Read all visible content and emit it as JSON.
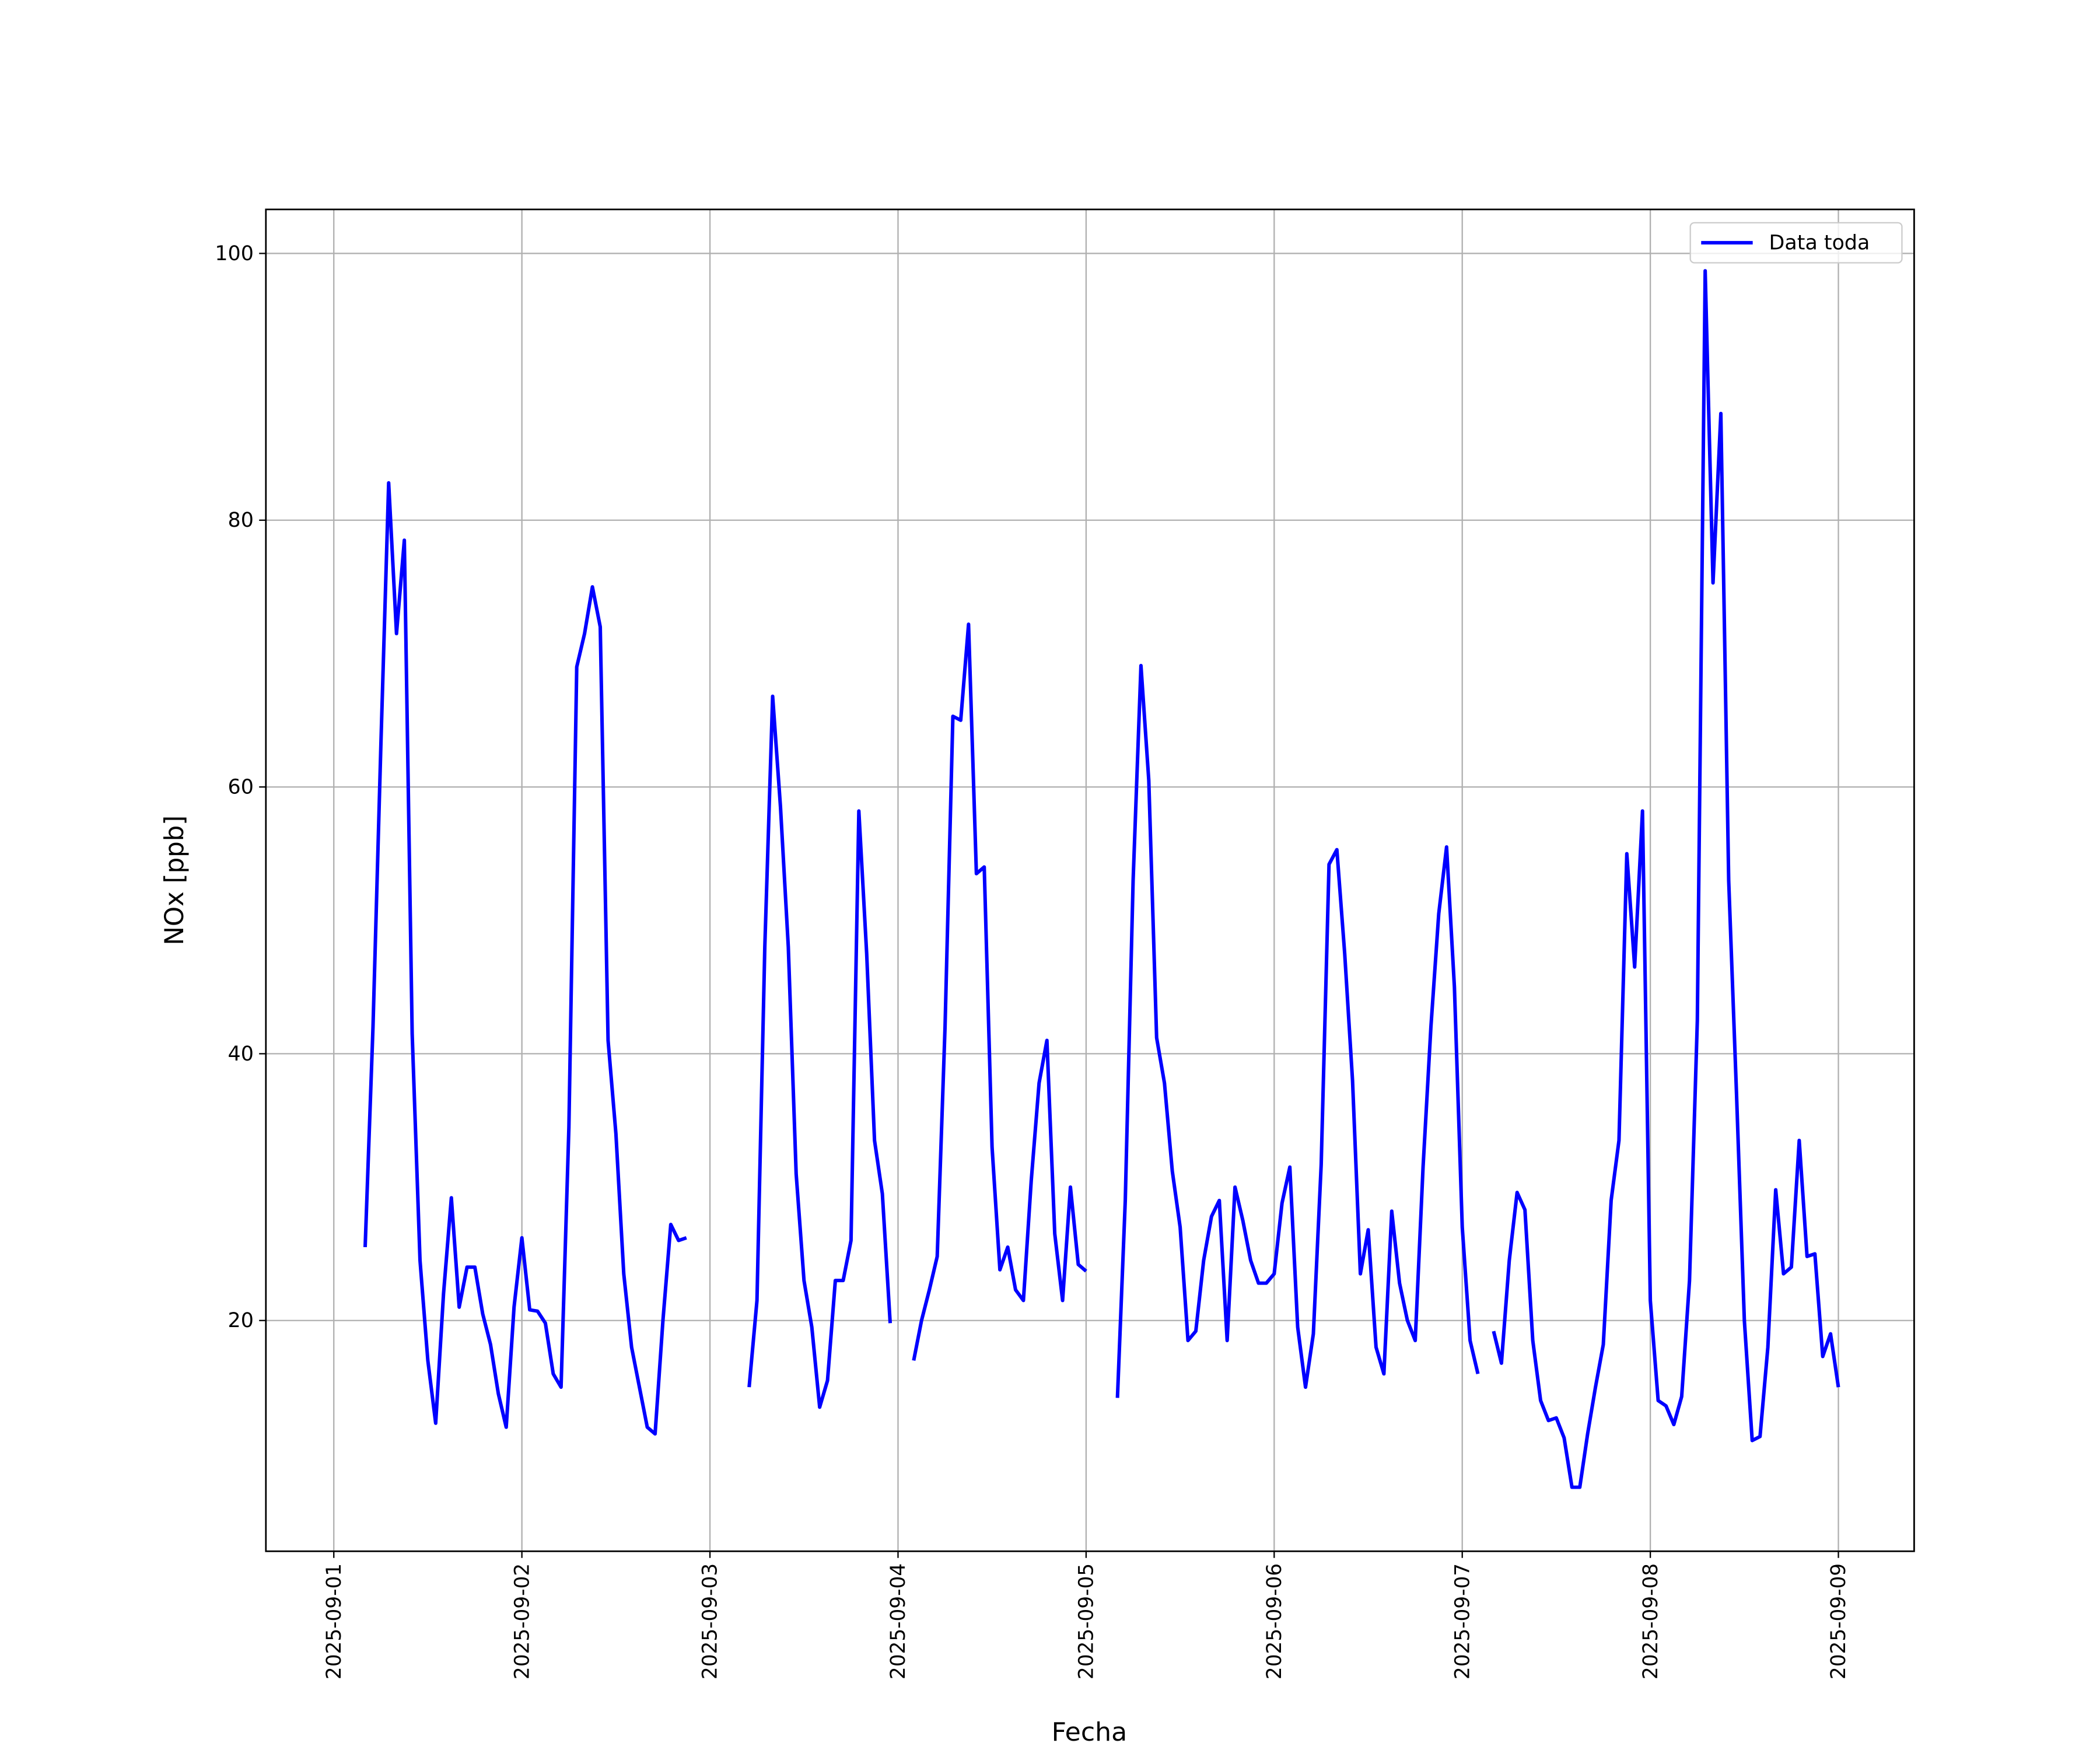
{
  "chart_data": {
    "type": "line",
    "xlabel": "Fecha",
    "ylabel": "NOx [ppb]",
    "xlim": [
      "2025-08-31 15:20",
      "2025-09-09 09:40"
    ],
    "xticks": [
      "2025-09-01",
      "2025-09-02",
      "2025-09-03",
      "2025-09-04",
      "2025-09-05",
      "2025-09-06",
      "2025-09-07",
      "2025-09-08",
      "2025-09-09"
    ],
    "ylim": [
      2.7,
      103.3
    ],
    "yticks": [
      20,
      40,
      60,
      80,
      100
    ],
    "grid": true,
    "legend": "upper right",
    "x": [
      "2025-09-01 04:00",
      "2025-09-01 05:00",
      "2025-09-01 06:00",
      "2025-09-01 07:00",
      "2025-09-01 08:00",
      "2025-09-01 09:00",
      "2025-09-01 10:00",
      "2025-09-01 11:00",
      "2025-09-01 12:00",
      "2025-09-01 13:00",
      "2025-09-01 14:00",
      "2025-09-01 15:00",
      "2025-09-01 16:00",
      "2025-09-01 17:00",
      "2025-09-01 18:00",
      "2025-09-01 19:00",
      "2025-09-01 20:00",
      "2025-09-01 21:00",
      "2025-09-01 22:00",
      "2025-09-01 23:00",
      "2025-09-02 00:00",
      "2025-09-02 01:00",
      "2025-09-02 02:00",
      "2025-09-02 03:00",
      "2025-09-02 04:00",
      "2025-09-02 05:00",
      "2025-09-02 06:00",
      "2025-09-02 07:00",
      "2025-09-02 08:00",
      "2025-09-02 09:00",
      "2025-09-02 10:00",
      "2025-09-02 11:00",
      "2025-09-02 12:00",
      "2025-09-02 13:00",
      "2025-09-02 14:00",
      "2025-09-02 15:00",
      "2025-09-02 16:00",
      "2025-09-02 17:00",
      "2025-09-02 18:00",
      "2025-09-02 19:00",
      "2025-09-02 20:00",
      "2025-09-02 21:00",
      "2025-09-02 22:00",
      "2025-09-03 05:00",
      "2025-09-03 06:00",
      "2025-09-03 07:00",
      "2025-09-03 08:00",
      "2025-09-03 09:00",
      "2025-09-03 10:00",
      "2025-09-03 11:00",
      "2025-09-03 12:00",
      "2025-09-03 13:00",
      "2025-09-03 14:00",
      "2025-09-03 15:00",
      "2025-09-03 16:00",
      "2025-09-03 17:00",
      "2025-09-03 18:00",
      "2025-09-03 19:00",
      "2025-09-03 20:00",
      "2025-09-03 21:00",
      "2025-09-03 22:00",
      "2025-09-03 23:00",
      "2025-09-04 00:00",
      "2025-09-04 02:00",
      "2025-09-04 03:00",
      "2025-09-04 04:00",
      "2025-09-04 05:00",
      "2025-09-04 06:00",
      "2025-09-04 07:00",
      "2025-09-04 08:00",
      "2025-09-04 09:00",
      "2025-09-04 10:00",
      "2025-09-04 11:00",
      "2025-09-04 12:00",
      "2025-09-04 13:00",
      "2025-09-04 14:00",
      "2025-09-04 15:00",
      "2025-09-04 16:00",
      "2025-09-04 17:00",
      "2025-09-04 18:00",
      "2025-09-04 19:00",
      "2025-09-04 20:00",
      "2025-09-04 21:00",
      "2025-09-04 22:00",
      "2025-09-04 23:00",
      "2025-09-05 00:00",
      "2025-09-05 01:00",
      "2025-09-05 04:00",
      "2025-09-05 05:00",
      "2025-09-05 06:00",
      "2025-09-05 07:00",
      "2025-09-05 08:00",
      "2025-09-05 09:00",
      "2025-09-05 10:00",
      "2025-09-05 11:00",
      "2025-09-05 12:00",
      "2025-09-05 13:00",
      "2025-09-05 14:00",
      "2025-09-05 15:00",
      "2025-09-05 16:00",
      "2025-09-05 17:00",
      "2025-09-05 18:00",
      "2025-09-05 19:00",
      "2025-09-05 20:00",
      "2025-09-05 21:00",
      "2025-09-05 22:00",
      "2025-09-05 23:00",
      "2025-09-06 00:00",
      "2025-09-06 01:00",
      "2025-09-06 02:00",
      "2025-09-06 03:00",
      "2025-09-06 04:00",
      "2025-09-06 05:00",
      "2025-09-06 06:00",
      "2025-09-06 07:00",
      "2025-09-06 08:00",
      "2025-09-06 09:00",
      "2025-09-06 10:00",
      "2025-09-06 11:00",
      "2025-09-06 12:00",
      "2025-09-06 13:00",
      "2025-09-06 14:00",
      "2025-09-06 15:00",
      "2025-09-06 16:00",
      "2025-09-06 17:00",
      "2025-09-06 18:00",
      "2025-09-06 19:00",
      "2025-09-06 20:00",
      "2025-09-06 21:00",
      "2025-09-06 22:00",
      "2025-09-06 23:00",
      "2025-09-07 00:00",
      "2025-09-07 01:00",
      "2025-09-07 02:00",
      "2025-09-07 03:00",
      "2025-09-07 04:00",
      "2025-09-07 05:00",
      "2025-09-07 06:00",
      "2025-09-07 07:00",
      "2025-09-07 08:00",
      "2025-09-07 09:00",
      "2025-09-07 10:00",
      "2025-09-07 11:00",
      "2025-09-07 12:00",
      "2025-09-07 13:00",
      "2025-09-07 14:00",
      "2025-09-07 15:00",
      "2025-09-07 16:00",
      "2025-09-07 17:00",
      "2025-09-07 18:00",
      "2025-09-07 19:00",
      "2025-09-07 20:00",
      "2025-09-07 21:00",
      "2025-09-07 22:00",
      "2025-09-07 23:00",
      "2025-09-08 00:00",
      "2025-09-08 01:00",
      "2025-09-08 02:00",
      "2025-09-08 03:00",
      "2025-09-08 04:00",
      "2025-09-08 05:00",
      "2025-09-08 06:00",
      "2025-09-08 07:00",
      "2025-09-08 08:00",
      "2025-09-08 09:00",
      "2025-09-08 10:00",
      "2025-09-08 11:00",
      "2025-09-08 12:00",
      "2025-09-08 13:00",
      "2025-09-08 14:00",
      "2025-09-08 15:00",
      "2025-09-08 16:00",
      "2025-09-08 17:00",
      "2025-09-08 18:00",
      "2025-09-08 19:00",
      "2025-09-08 20:00",
      "2025-09-08 21:00",
      "2025-09-08 22:00",
      "2025-09-08 23:00",
      "2025-09-09 00:00"
    ],
    "series": [
      {
        "name": "Data toda",
        "color": "#0000ff",
        "values": [
          25.5,
          42,
          63,
          82.8,
          71.5,
          78.5,
          41.5,
          24.5,
          17,
          12.3,
          22,
          29.2,
          21,
          24,
          24,
          20.5,
          18.2,
          14.5,
          12,
          21,
          26.2,
          20.8,
          20.7,
          19.8,
          16,
          15,
          34.5,
          69,
          71.5,
          75,
          72,
          41,
          34,
          23.5,
          18,
          15,
          12,
          11.5,
          20,
          27.2,
          26,
          26.2,
          null,
          15,
          21.5,
          48,
          66.8,
          58.5,
          48,
          31,
          23,
          19.5,
          13.5,
          15.5,
          23,
          23,
          26,
          58.2,
          47.5,
          33.5,
          29.5,
          19.8,
          null,
          17,
          20,
          22.3,
          24.8,
          42,
          65.3,
          65,
          72.2,
          53.5,
          54,
          33,
          23.8,
          25.5,
          22.3,
          21.5,
          30.5,
          37.8,
          41,
          26.5,
          21.5,
          30,
          24.2,
          23.7,
          null,
          14.2,
          29,
          53,
          69.1,
          60.5,
          41.2,
          37.8,
          31.2,
          27,
          18.5,
          19.2,
          24.5,
          27.8,
          29,
          18.5,
          30,
          27.5,
          24.5,
          22.8,
          22.8,
          23.5,
          28.8,
          31.5,
          19.5,
          15,
          19,
          31.7,
          54.2,
          55.3,
          47.5,
          38,
          23.5,
          26.8,
          18,
          16,
          28.2,
          22.8,
          20,
          18.5,
          31.5,
          42,
          50.5,
          55.5,
          45,
          27,
          18.5,
          16,
          null,
          19.2,
          16.8,
          24.5,
          29.6,
          28.3,
          18.5,
          14,
          12.5,
          12.7,
          11.2,
          7.5,
          7.5,
          11.5,
          15,
          18.2,
          29,
          33.5,
          55,
          46.5,
          58.2,
          21.5,
          14,
          13.6,
          12.2,
          14.3,
          23,
          42.5,
          98.7,
          75.3,
          88,
          53,
          37,
          20,
          11,
          11.3,
          18,
          29.8,
          23.5,
          24,
          33.5,
          24.8,
          25,
          17.3,
          19,
          15
        ]
      }
    ]
  }
}
